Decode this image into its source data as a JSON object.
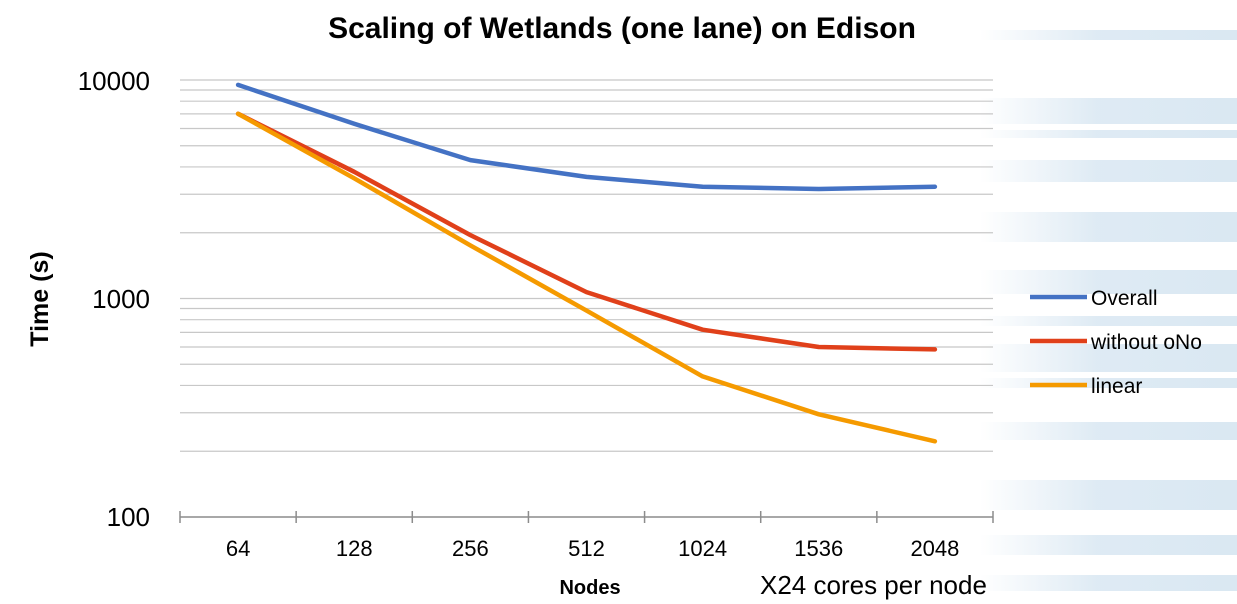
{
  "chart_data": {
    "type": "line",
    "title": "Scaling of Wetlands (one lane) on Edison",
    "xlabel": "Nodes",
    "ylabel": "Time (s)",
    "x_note": "X24 cores per node",
    "yscale": "log",
    "ylim": [
      100,
      10000
    ],
    "y_ticks": [
      "10000",
      "1000",
      "100"
    ],
    "categories": [
      "64",
      "128",
      "256",
      "512",
      "1024",
      "1536",
      "2048"
    ],
    "grid": true,
    "legend_position": "right",
    "series": [
      {
        "name": "Overall",
        "color": "#4472C4",
        "values": [
          9500,
          6300,
          4300,
          3600,
          3250,
          3170,
          3250
        ]
      },
      {
        "name": "without oNo",
        "color": "#E0401A",
        "values": [
          7000,
          3800,
          1950,
          1070,
          720,
          600,
          585
        ]
      },
      {
        "name": "linear",
        "color": "#F59A00",
        "values": [
          7000,
          3550,
          1750,
          880,
          440,
          295,
          222
        ]
      }
    ]
  }
}
